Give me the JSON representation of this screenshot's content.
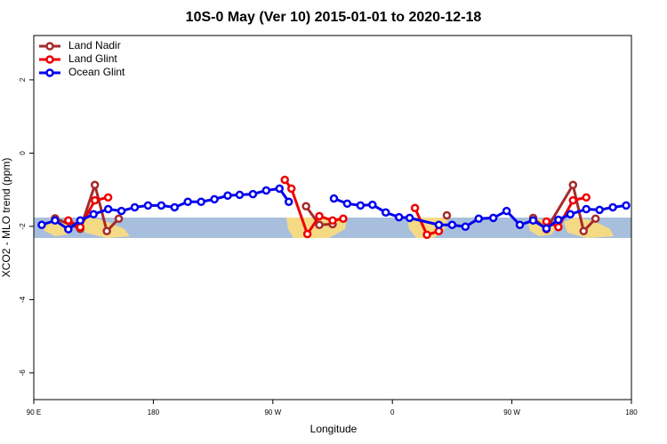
{
  "chart_data": {
    "type": "line",
    "title": "10S-0 May (Ver 10)   2015-01-01 to 2020-12-18",
    "x_label": "Longitude",
    "y_label": "XCO2 - MLO trend (ppm)",
    "xlim": [
      90,
      540
    ],
    "ylim": [
      -6.73,
      3.21
    ],
    "xticks": [
      {
        "value": 90,
        "label": "90 E"
      },
      {
        "value": 180,
        "label": "180"
      },
      {
        "value": 270,
        "label": "90 W"
      },
      {
        "value": 360,
        "label": "0"
      },
      {
        "value": 450,
        "label": "90 W"
      },
      {
        "value": 540,
        "label": "180"
      }
    ],
    "yticks": [
      2,
      0,
      -2,
      -4,
      -6
    ],
    "legend": "top-left",
    "series": [
      {
        "name": "Land Nadir",
        "color": "#a52a2a",
        "x": [
          106,
          125,
          136,
          145,
          154,
          225,
          295,
          305,
          315,
          358,
          401,
          433,
          466,
          476,
          496,
          504,
          513
        ],
        "values": [
          -1.78,
          -2.07,
          -0.87,
          -2.13,
          -1.79,
          null,
          -1.45,
          -1.96,
          -1.94,
          null,
          -1.7,
          null,
          -1.77,
          -2.08,
          -0.87,
          -2.13,
          -1.79
        ]
      },
      {
        "name": "Land Glint",
        "color": "#ee0000",
        "x": [
          116,
          125,
          136,
          146,
          212,
          279,
          284,
          296,
          305,
          315,
          323,
          350,
          377,
          386,
          395,
          435,
          476,
          485,
          496,
          506
        ],
        "values": [
          -1.84,
          -2.02,
          -1.29,
          -1.21,
          null,
          -0.73,
          -0.97,
          -2.21,
          -1.72,
          -1.84,
          -1.79,
          null,
          -1.5,
          -2.23,
          -2.13,
          null,
          -1.87,
          -2.02,
          -1.29,
          -1.21
        ]
      },
      {
        "name": "Ocean Glint",
        "color": "#0000ee",
        "x": [
          96,
          106,
          116,
          125,
          135,
          146,
          156,
          166,
          176,
          186,
          196,
          206,
          216,
          226,
          236,
          245,
          255,
          265,
          275,
          282,
          299,
          316,
          326,
          336,
          345,
          355,
          365,
          373,
          395,
          405,
          415,
          425,
          436,
          446,
          456,
          466,
          476,
          485,
          494,
          506,
          516,
          526,
          536
        ],
        "values": [
          -1.96,
          -1.84,
          -2.08,
          -1.84,
          -1.67,
          -1.53,
          -1.58,
          -1.48,
          -1.43,
          -1.43,
          -1.48,
          -1.33,
          -1.33,
          -1.26,
          -1.16,
          -1.14,
          -1.12,
          -1.02,
          -0.97,
          -1.33,
          null,
          -1.24,
          -1.38,
          -1.43,
          -1.41,
          -1.62,
          -1.75,
          -1.77,
          -1.96,
          -1.96,
          -2.01,
          -1.79,
          -1.77,
          -1.58,
          -1.96,
          -1.84,
          -2.06,
          -1.82,
          -1.67,
          -1.53,
          -1.55,
          -1.48,
          -1.43
        ]
      }
    ]
  }
}
